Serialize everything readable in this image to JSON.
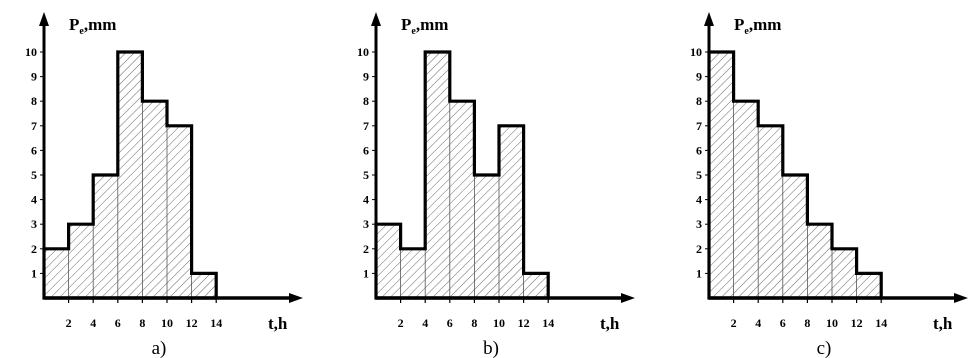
{
  "chart_data": [
    {
      "type": "area",
      "panel_label": "a)",
      "ylabel_main": "P",
      "ylabel_sub": "e",
      "ylabel_tail": ",mm",
      "xlabel": "t,h",
      "x_ticks": [
        "2",
        "4",
        "6",
        "8",
        "10",
        "12",
        "14"
      ],
      "y_ticks": [
        "1",
        "2",
        "3",
        "4",
        "5",
        "6",
        "7",
        "8",
        "9",
        "10"
      ],
      "xlim": [
        0,
        14
      ],
      "ylim": [
        0,
        10
      ],
      "steps": [
        {
          "x_start": 0,
          "x_end": 2,
          "value": 2
        },
        {
          "x_start": 2,
          "x_end": 4,
          "value": 3
        },
        {
          "x_start": 4,
          "x_end": 6,
          "value": 5
        },
        {
          "x_start": 6,
          "x_end": 8,
          "value": 10
        },
        {
          "x_start": 8,
          "x_end": 10,
          "value": 8
        },
        {
          "x_start": 10,
          "x_end": 12,
          "value": 7
        },
        {
          "x_start": 12,
          "x_end": 14,
          "value": 1
        }
      ],
      "fill": "hatched",
      "grid": false
    },
    {
      "type": "area",
      "panel_label": "b)",
      "ylabel_main": "P",
      "ylabel_sub": "e",
      "ylabel_tail": ",mm",
      "xlabel": "t,h",
      "x_ticks": [
        "2",
        "4",
        "6",
        "8",
        "10",
        "12",
        "14"
      ],
      "y_ticks": [
        "1",
        "2",
        "3",
        "4",
        "5",
        "6",
        "7",
        "8",
        "9",
        "10"
      ],
      "xlim": [
        0,
        14
      ],
      "ylim": [
        0,
        10
      ],
      "steps": [
        {
          "x_start": 0,
          "x_end": 2,
          "value": 3
        },
        {
          "x_start": 2,
          "x_end": 4,
          "value": 2
        },
        {
          "x_start": 4,
          "x_end": 6,
          "value": 10
        },
        {
          "x_start": 6,
          "x_end": 8,
          "value": 8
        },
        {
          "x_start": 8,
          "x_end": 10,
          "value": 5
        },
        {
          "x_start": 10,
          "x_end": 12,
          "value": 7
        },
        {
          "x_start": 12,
          "x_end": 14,
          "value": 1
        }
      ],
      "fill": "hatched",
      "grid": false
    },
    {
      "type": "area",
      "panel_label": "c)",
      "ylabel_main": "P",
      "ylabel_sub": "e",
      "ylabel_tail": ",mm",
      "xlabel": "t,h",
      "x_ticks": [
        "2",
        "4",
        "6",
        "8",
        "10",
        "12",
        "14"
      ],
      "y_ticks": [
        "1",
        "2",
        "3",
        "4",
        "5",
        "6",
        "7",
        "8",
        "9",
        "10"
      ],
      "xlim": [
        0,
        14
      ],
      "ylim": [
        0,
        10
      ],
      "steps": [
        {
          "x_start": 0,
          "x_end": 2,
          "value": 10
        },
        {
          "x_start": 2,
          "x_end": 4,
          "value": 8
        },
        {
          "x_start": 4,
          "x_end": 6,
          "value": 7
        },
        {
          "x_start": 6,
          "x_end": 8,
          "value": 5
        },
        {
          "x_start": 8,
          "x_end": 10,
          "value": 3
        },
        {
          "x_start": 10,
          "x_end": 12,
          "value": 2
        },
        {
          "x_start": 12,
          "x_end": 14,
          "value": 1
        }
      ],
      "fill": "hatched",
      "grid": false
    }
  ]
}
